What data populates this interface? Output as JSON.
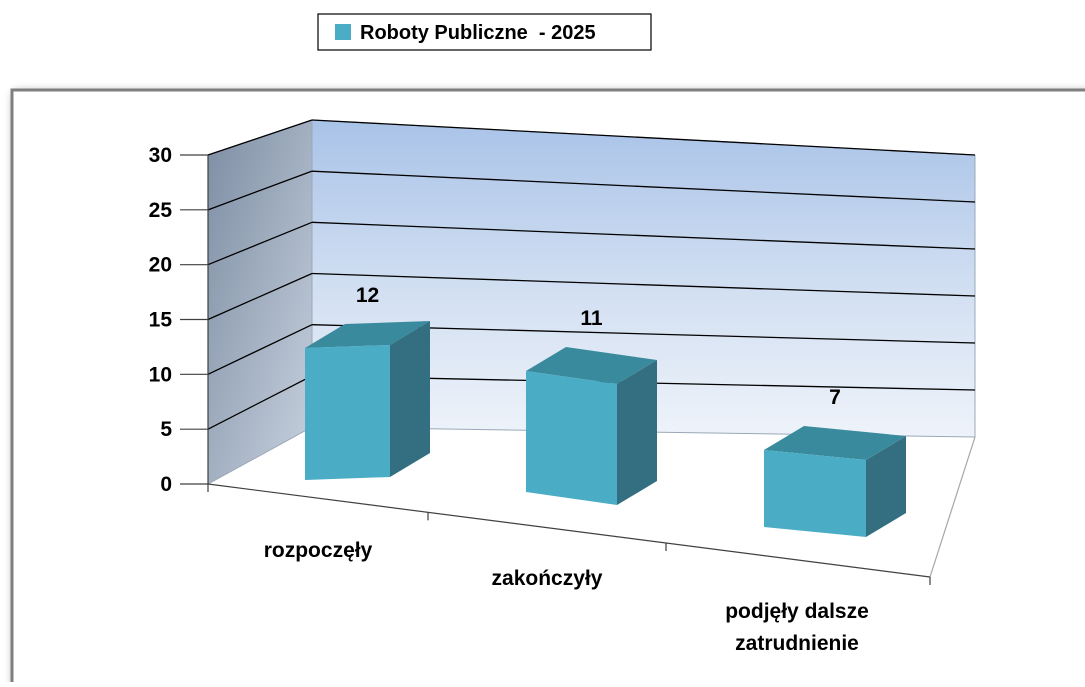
{
  "chart_data": {
    "type": "bar",
    "categories": [
      "rozpoczęły",
      "zakończyły",
      "podjęły dalsze zatrudnienie"
    ],
    "category_lines": [
      [
        "rozpoczęły"
      ],
      [
        "zakończyły"
      ],
      [
        "podjęły dalsze",
        "zatrudnienie"
      ]
    ],
    "series": [
      {
        "name": "Roboty Publiczne  - 2025",
        "values": [
          12,
          11,
          7
        ],
        "color": "#4bacc6"
      }
    ],
    "data_labels": [
      "12",
      "11",
      "7"
    ],
    "yticks": [
      0,
      5,
      10,
      15,
      20,
      25,
      30
    ],
    "ylim": [
      0,
      30
    ],
    "grid": true,
    "legend_position": "top",
    "style": "3d-column"
  }
}
